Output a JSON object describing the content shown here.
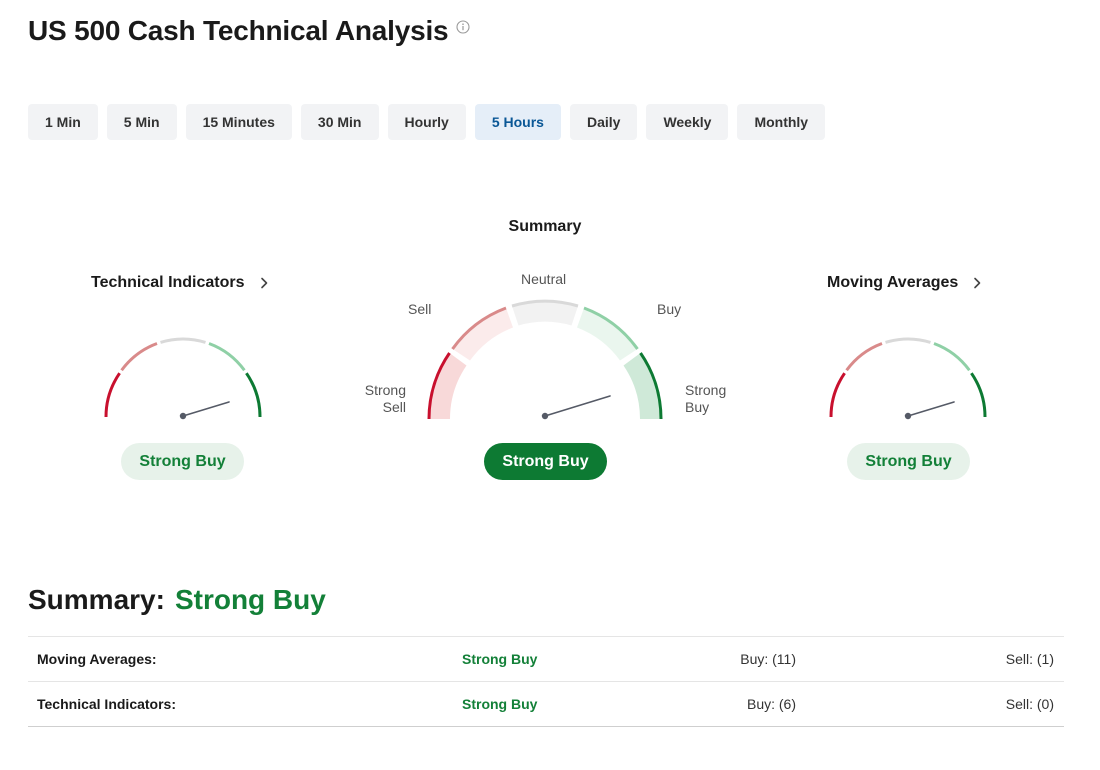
{
  "header": {
    "title": "US 500 Cash Technical Analysis",
    "info_icon": "info-icon"
  },
  "timeframes": [
    {
      "label": "1 Min",
      "active": false
    },
    {
      "label": "5 Min",
      "active": false
    },
    {
      "label": "15 Minutes",
      "active": false
    },
    {
      "label": "30 Min",
      "active": false
    },
    {
      "label": "Hourly",
      "active": false
    },
    {
      "label": "5 Hours",
      "active": true
    },
    {
      "label": "Daily",
      "active": false
    },
    {
      "label": "Weekly",
      "active": false
    },
    {
      "label": "Monthly",
      "active": false
    }
  ],
  "gauges": {
    "summary": {
      "title": "Summary",
      "signal": "Strong Buy",
      "labels": {
        "strong_sell": "Strong\nSell",
        "sell": "Sell",
        "neutral": "Neutral",
        "buy": "Buy",
        "strong_buy": "Strong\nBuy"
      }
    },
    "technical_indicators": {
      "title": "Technical Indicators",
      "signal": "Strong Buy"
    },
    "moving_averages": {
      "title": "Moving Averages",
      "signal": "Strong Buy"
    }
  },
  "summary_section": {
    "label": "Summary:",
    "value": "Strong Buy",
    "rows": [
      {
        "name": "Moving Averages:",
        "signal": "Strong Buy",
        "buy": "Buy: (11)",
        "sell": "Sell: (1)"
      },
      {
        "name": "Technical Indicators:",
        "signal": "Strong Buy",
        "buy": "Buy: (6)",
        "sell": "Sell: (0)"
      }
    ]
  },
  "colors": {
    "strong_sell": "#c8102e",
    "sell": "#d98a8a",
    "neutral": "#d9d9d9",
    "buy": "#8fd0a6",
    "strong_buy": "#0d7a33",
    "active_tab_text": "#0a5796",
    "positive_text": "#138038"
  },
  "icons": {
    "chevron": "chevron-right-icon",
    "needle": "gauge-needle"
  }
}
